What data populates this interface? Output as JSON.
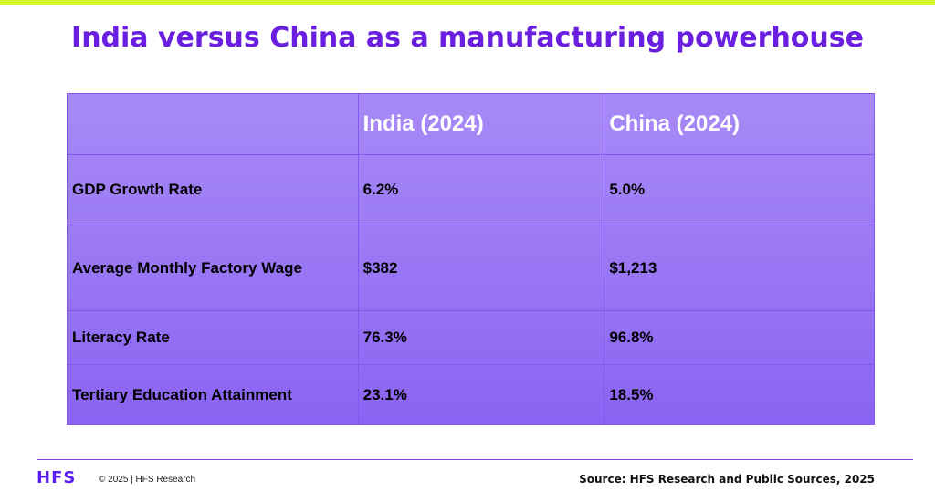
{
  "title": "India versus China as a manufacturing powerhouse",
  "table": {
    "headers": [
      "",
      "India (2024)",
      "China (2024)"
    ],
    "rows": [
      {
        "metric": "GDP Growth Rate",
        "india": "6.2%",
        "china": "5.0%"
      },
      {
        "metric": "Average Monthly Factory Wage",
        "india": "$382",
        "china": "$1,213"
      },
      {
        "metric": "Literacy Rate",
        "india": "76.3%",
        "china": "96.8%"
      },
      {
        "metric": "Tertiary Education Attainment",
        "india": "23.1%",
        "china": "18.5%"
      }
    ]
  },
  "footer": {
    "logo": "HFS",
    "copyright": "© 2025 | HFS Research",
    "source": "Source: HFS Research and Public Sources, 2025"
  },
  "colors": {
    "accent_bar": "#d6f52a",
    "title": "#6a1fe0",
    "table_fill": "#9a78f4",
    "logo": "#5a1ff0"
  }
}
